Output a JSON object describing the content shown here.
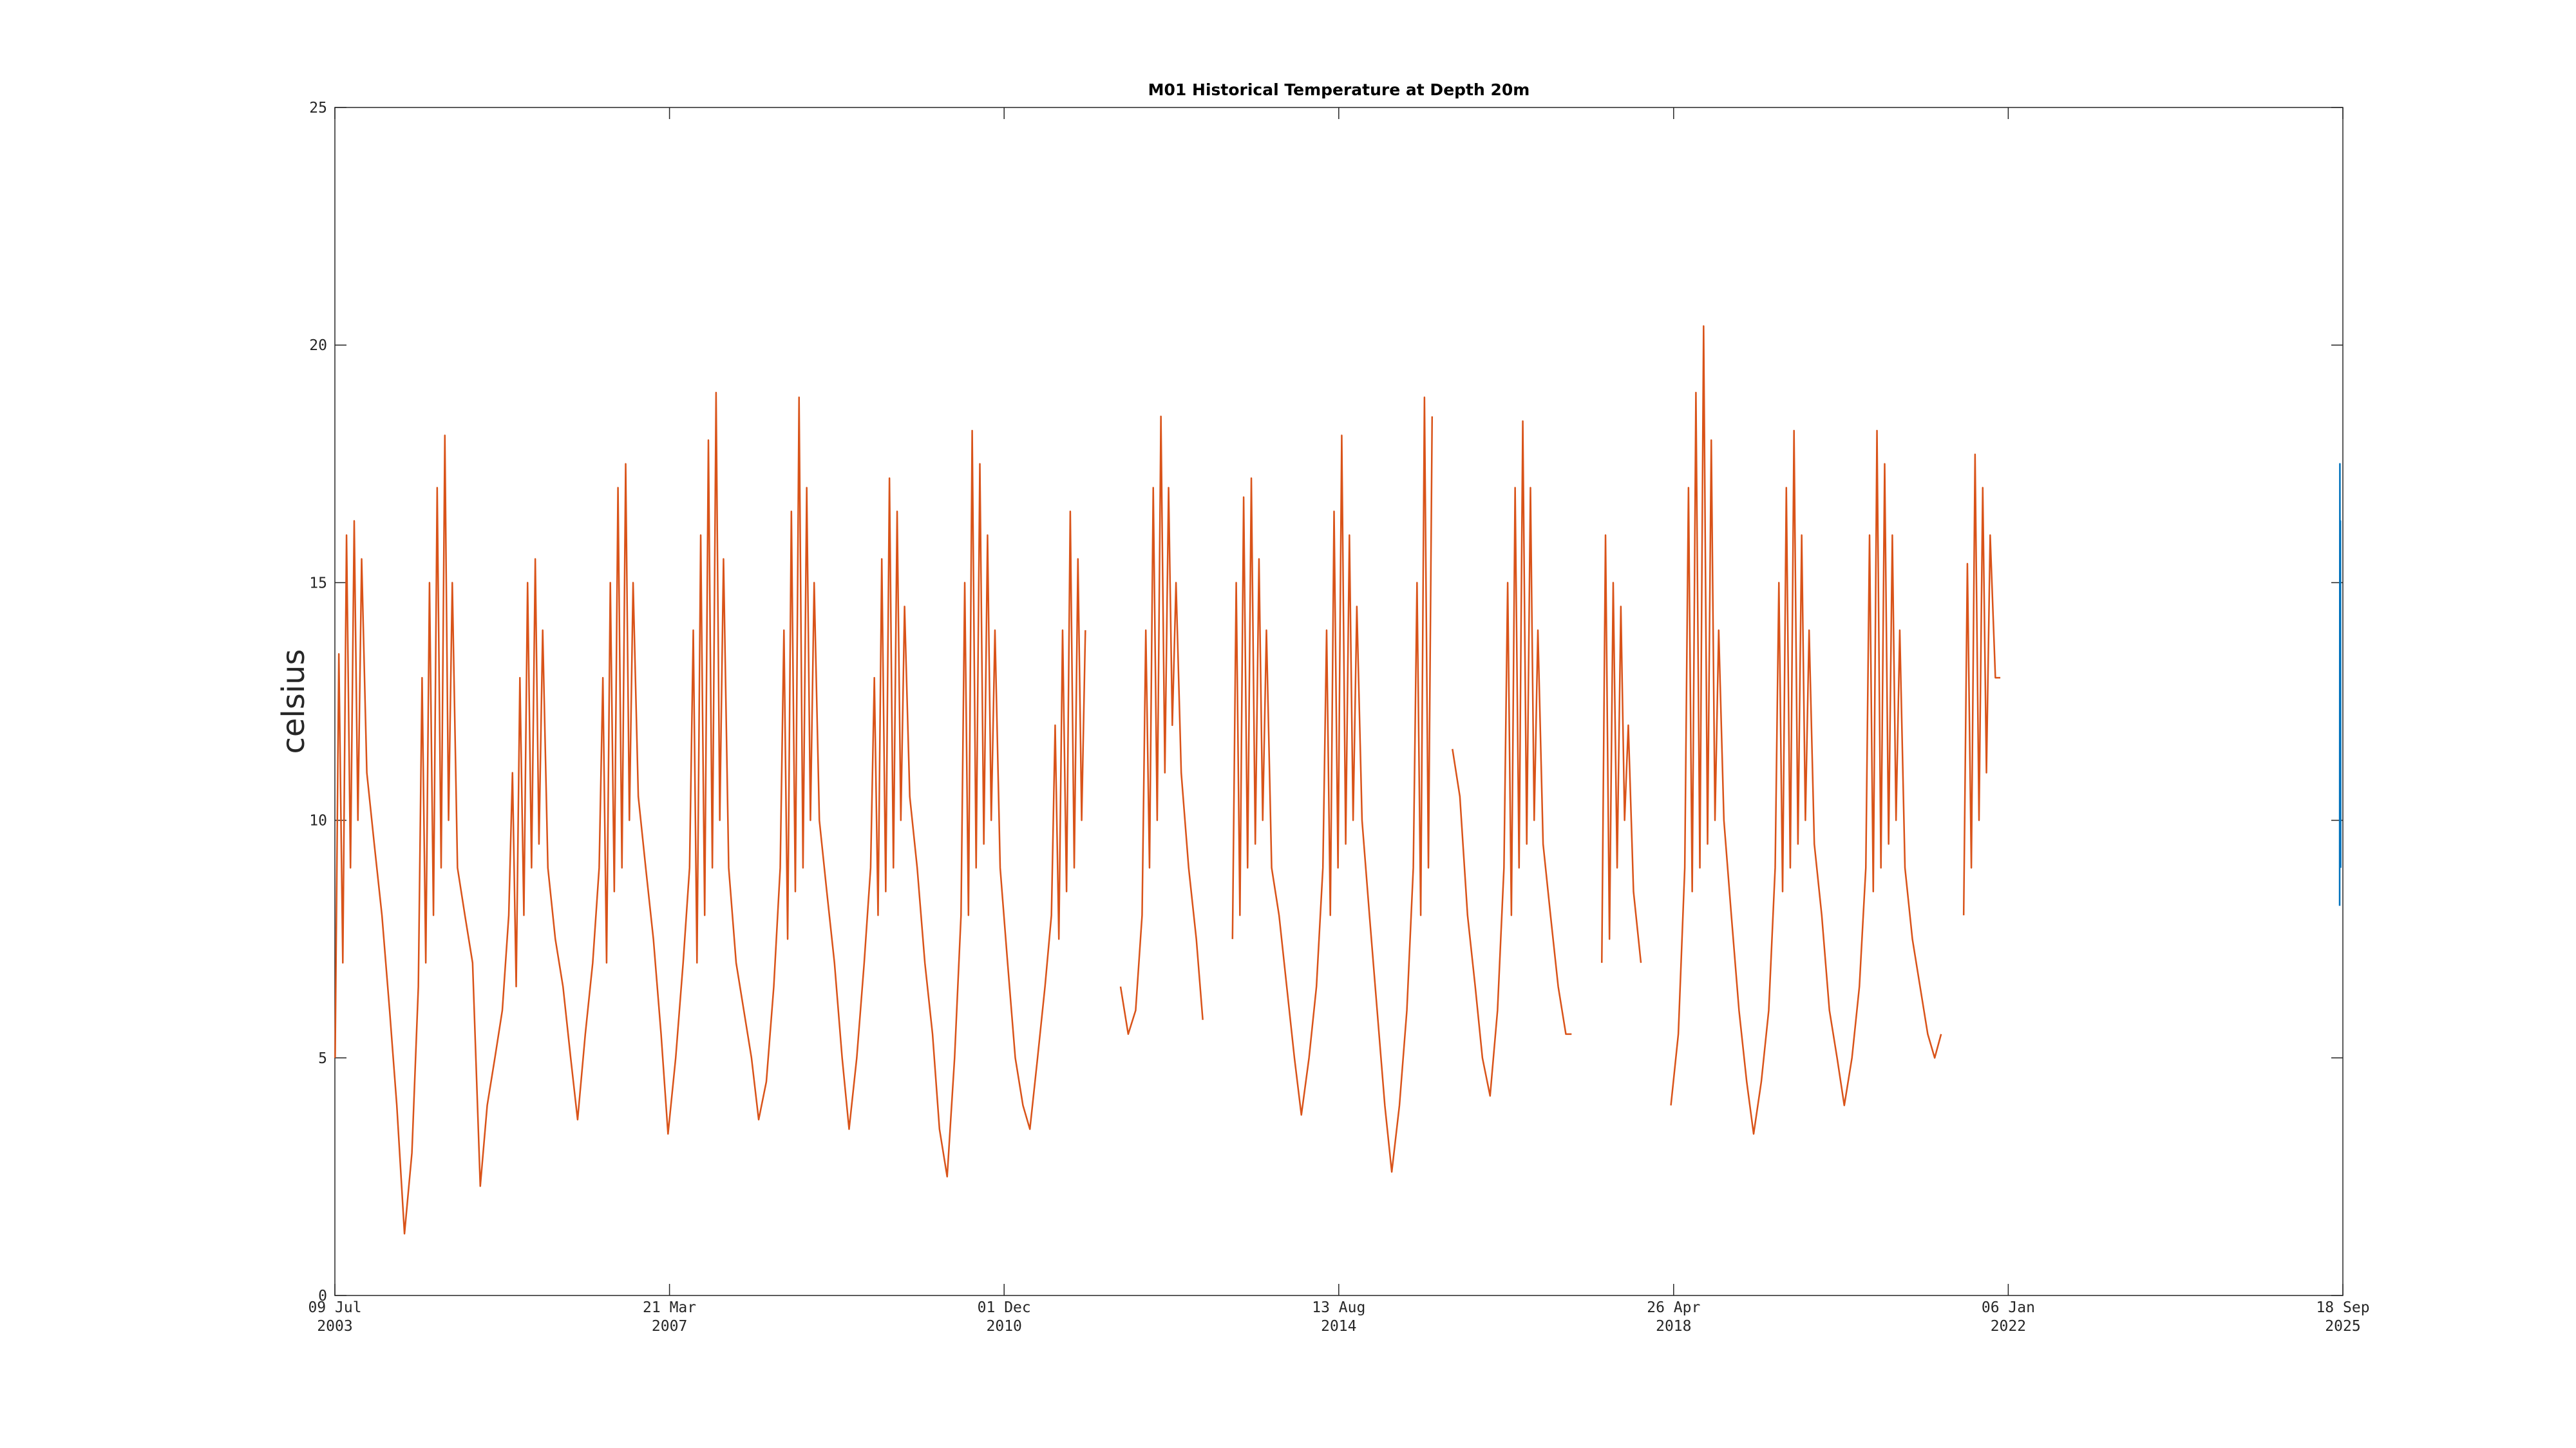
{
  "chart_data": {
    "type": "line",
    "title": "M01 Historical Temperature at Depth 20m",
    "ylabel": "celsius",
    "xlim": [
      "2003-07-09",
      "2025-09-18"
    ],
    "xticks": [
      {
        "value": "2003-07-09",
        "label": "09 Jul 2003"
      },
      {
        "value": "2007-03-21",
        "label": "21 Mar 2007"
      },
      {
        "value": "2010-12-01",
        "label": "01 Dec 2010"
      },
      {
        "value": "2014-08-13",
        "label": "13 Aug 2014"
      },
      {
        "value": "2018-04-26",
        "label": "26 Apr 2018"
      },
      {
        "value": "2022-01-06",
        "label": "06 Jan 2022"
      },
      {
        "value": "2025-09-18",
        "label": "18 Sep 2025"
      }
    ],
    "ylim": [
      0,
      25
    ],
    "yticks": [
      0,
      5,
      10,
      15,
      20,
      25
    ],
    "grid": false,
    "series": [
      {
        "color": "#D95319",
        "x": [
          "2003-07-10",
          "2003-07-25",
          "2003-08-10",
          "2003-08-25",
          "2003-09-10",
          "2003-09-25",
          "2003-10-10",
          "2003-10-25",
          "2003-11-15",
          "2003-12-15",
          "2004-01-15",
          "2004-02-15",
          "2004-03-15",
          "2004-04-15",
          "2004-05-15",
          "2004-06-10",
          "2004-06-25",
          "2004-07-10",
          "2004-07-25",
          "2004-08-10",
          "2004-08-25",
          "2004-09-10",
          "2004-09-25",
          "2004-10-10",
          "2004-10-25",
          "2004-11-15",
          "2004-12-15",
          "2005-01-15",
          "2005-02-15",
          "2005-03-15",
          "2005-04-15",
          "2005-05-15",
          "2005-06-10",
          "2005-06-25",
          "2005-07-10",
          "2005-07-25",
          "2005-08-10",
          "2005-08-25",
          "2005-09-10",
          "2005-09-25",
          "2005-10-10",
          "2005-10-25",
          "2005-11-15",
          "2005-12-15",
          "2006-01-15",
          "2006-02-15",
          "2006-03-15",
          "2006-04-15",
          "2006-05-15",
          "2006-06-10",
          "2006-06-25",
          "2006-07-10",
          "2006-07-25",
          "2006-08-10",
          "2006-08-25",
          "2006-09-10",
          "2006-09-25",
          "2006-10-10",
          "2006-10-25",
          "2006-11-15",
          "2006-12-15",
          "2007-01-15",
          "2007-02-15",
          "2007-03-15",
          "2007-04-15",
          "2007-05-15",
          "2007-06-10",
          "2007-06-25",
          "2007-07-10",
          "2007-07-25",
          "2007-08-10",
          "2007-08-25",
          "2007-09-10",
          "2007-09-25",
          "2007-10-10",
          "2007-10-25",
          "2007-11-15",
          "2007-12-15",
          "2008-01-15",
          "2008-02-15",
          "2008-03-15",
          "2008-04-15",
          "2008-05-15",
          "2008-06-10",
          "2008-06-25",
          "2008-07-10",
          "2008-07-25",
          "2008-08-10",
          "2008-08-25",
          "2008-09-10",
          "2008-09-25",
          "2008-10-10",
          "2008-10-25",
          "2008-11-15",
          "2008-12-15",
          "2009-01-15",
          "2009-02-15",
          "2009-03-15",
          "2009-04-15",
          "2009-05-15",
          "2009-06-10",
          "2009-06-25",
          "2009-07-10",
          "2009-07-25",
          "2009-08-10",
          "2009-08-25",
          "2009-09-10",
          "2009-09-25",
          "2009-10-10",
          "2009-10-25",
          "2009-11-15",
          "2009-12-15",
          "2010-01-15",
          "2010-02-15",
          "2010-03-15",
          "2010-04-15",
          "2010-05-15",
          "2010-06-10",
          "2010-06-25",
          "2010-07-10",
          "2010-07-25",
          "2010-08-10",
          "2010-08-25",
          "2010-09-10",
          "2010-09-25",
          "2010-10-10",
          "2010-10-25",
          "2010-11-15",
          "2010-12-15",
          "2011-01-15",
          "2011-02-15",
          "2011-03-15",
          "2011-04-15",
          "2011-05-15",
          "2011-06-10",
          "2011-06-25",
          "2011-07-10",
          "2011-07-25",
          "2011-08-10",
          "2011-08-25",
          "2011-09-10",
          "2011-09-25",
          "2011-10-10",
          "2011-10-25",
          "2011-11-15",
          "2012-03-15",
          "2012-04-15",
          "2012-05-15",
          "2012-06-10",
          "2012-06-25",
          "2012-07-10",
          "2012-07-25",
          "2012-08-10",
          "2012-08-25",
          "2012-09-10",
          "2012-09-25",
          "2012-10-10",
          "2012-10-25",
          "2012-11-15",
          "2012-12-15",
          "2013-01-15",
          "2013-02-10",
          "2013-03-15",
          "2013-06-10",
          "2013-06-25",
          "2013-07-10",
          "2013-07-25",
          "2013-08-10",
          "2013-08-25",
          "2013-09-10",
          "2013-09-25",
          "2013-10-10",
          "2013-10-25",
          "2013-11-15",
          "2013-12-15",
          "2014-01-15",
          "2014-02-15",
          "2014-03-15",
          "2014-04-15",
          "2014-05-15",
          "2014-06-10",
          "2014-06-25",
          "2014-07-10",
          "2014-07-25",
          "2014-08-10",
          "2014-08-25",
          "2014-09-10",
          "2014-09-25",
          "2014-10-10",
          "2014-10-25",
          "2014-11-15",
          "2014-12-15",
          "2015-01-15",
          "2015-02-15",
          "2015-03-15",
          "2015-04-15",
          "2015-05-15",
          "2015-06-10",
          "2015-06-25",
          "2015-07-10",
          "2015-07-25",
          "2015-08-10",
          "2015-08-25",
          "2015-09-10",
          "2015-11-15",
          "2015-12-15",
          "2016-01-15",
          "2016-02-15",
          "2016-03-15",
          "2016-04-15",
          "2016-05-15",
          "2016-06-10",
          "2016-06-25",
          "2016-07-10",
          "2016-07-25",
          "2016-08-10",
          "2016-08-25",
          "2016-09-10",
          "2016-09-25",
          "2016-10-10",
          "2016-10-25",
          "2016-11-15",
          "2016-12-15",
          "2017-01-15",
          "2017-02-15",
          "2017-03-10",
          "2017-04-15",
          "2017-07-10",
          "2017-07-25",
          "2017-08-10",
          "2017-08-25",
          "2017-09-10",
          "2017-09-25",
          "2017-10-10",
          "2017-10-25",
          "2017-11-15",
          "2017-12-15",
          "2018-01-15",
          "2018-04-15",
          "2018-05-15",
          "2018-06-10",
          "2018-06-25",
          "2018-07-10",
          "2018-07-25",
          "2018-08-10",
          "2018-08-25",
          "2018-09-10",
          "2018-09-25",
          "2018-10-10",
          "2018-10-25",
          "2018-11-15",
          "2018-12-15",
          "2019-01-15",
          "2019-02-15",
          "2019-03-15",
          "2019-04-15",
          "2019-05-15",
          "2019-06-10",
          "2019-06-25",
          "2019-07-10",
          "2019-07-25",
          "2019-08-10",
          "2019-08-25",
          "2019-09-10",
          "2019-09-25",
          "2019-10-10",
          "2019-10-25",
          "2019-11-15",
          "2019-12-15",
          "2020-01-15",
          "2020-02-15",
          "2020-03-15",
          "2020-04-15",
          "2020-05-15",
          "2020-06-10",
          "2020-06-25",
          "2020-07-10",
          "2020-07-25",
          "2020-08-10",
          "2020-08-25",
          "2020-09-10",
          "2020-09-25",
          "2020-10-10",
          "2020-10-25",
          "2020-11-15",
          "2020-12-15",
          "2021-01-15",
          "2021-02-15",
          "2021-03-15",
          "2021-04-10",
          "2021-05-15",
          "2021-07-10",
          "2021-07-25",
          "2021-08-10",
          "2021-08-25",
          "2021-09-10",
          "2021-09-25",
          "2021-10-10",
          "2021-10-25",
          "2021-11-15",
          "2021-12-05"
        ],
        "values": [
          5,
          13.5,
          7,
          16,
          9,
          16.3,
          10,
          15.5,
          11,
          9.5,
          8,
          6,
          4,
          1.3,
          3,
          6.5,
          13,
          7,
          15,
          8,
          17,
          9,
          18.1,
          10,
          15,
          9,
          8,
          7,
          2.3,
          4,
          5,
          6,
          8,
          11,
          6.5,
          13,
          8,
          15,
          9,
          15.5,
          9.5,
          14,
          9,
          7.5,
          6.5,
          5,
          3.7,
          5.5,
          7,
          9,
          13,
          7,
          15,
          8.5,
          17,
          9,
          17.5,
          10,
          15,
          10.5,
          9,
          7.5,
          5.5,
          3.4,
          5,
          7,
          9,
          14,
          7,
          16,
          8,
          18,
          9,
          19,
          10,
          15.5,
          9,
          7,
          6,
          5,
          3.7,
          4.5,
          6.5,
          9,
          14,
          7.5,
          16.5,
          8.5,
          18.9,
          9,
          17,
          10,
          15,
          10,
          8.5,
          7,
          5,
          3.5,
          5,
          7,
          9,
          13,
          8,
          15.5,
          8.5,
          17.2,
          9,
          16.5,
          10,
          14.5,
          10.5,
          9,
          7,
          5.5,
          3.5,
          2.5,
          5,
          8,
          15,
          8,
          18.2,
          9,
          17.5,
          9.5,
          16,
          10,
          14,
          9,
          7,
          5,
          4,
          3.5,
          5,
          6.5,
          8,
          12,
          7.5,
          14,
          8.5,
          16.5,
          9,
          15.5,
          10,
          14,
          null,
          6.5,
          5.5,
          6,
          8,
          14,
          9,
          17,
          10,
          18.5,
          11,
          17,
          12,
          15,
          11,
          9,
          7.5,
          5.8,
          null,
          7.5,
          15,
          8,
          16.8,
          9,
          17.2,
          9.5,
          15.5,
          10,
          14,
          9,
          8,
          6.5,
          5,
          3.8,
          5,
          6.5,
          9,
          14,
          8,
          16.5,
          9,
          18.1,
          9.5,
          16,
          10,
          14.5,
          10,
          8,
          6,
          4,
          2.6,
          4,
          6,
          9,
          15,
          8,
          18.9,
          9,
          18.5,
          null,
          11.5,
          10.5,
          8,
          6.5,
          5,
          4.2,
          6,
          9,
          15,
          8,
          17,
          9,
          18.4,
          9.5,
          17,
          10,
          14,
          9.5,
          8,
          6.5,
          5.5,
          5.5,
          null,
          7,
          16,
          7.5,
          15,
          9,
          14.5,
          10,
          12,
          8.5,
          7,
          null,
          4,
          5.5,
          9,
          17,
          8.5,
          19,
          9,
          20.4,
          9.5,
          18,
          10,
          14,
          10,
          8,
          6,
          4.5,
          3.4,
          4.5,
          6,
          9,
          15,
          8.5,
          17,
          9,
          18.2,
          9.5,
          16,
          10,
          14,
          9.5,
          8,
          6,
          5,
          4,
          5,
          6.5,
          9,
          16,
          8.5,
          18.2,
          9,
          17.5,
          9.5,
          16,
          10,
          14,
          9,
          7.5,
          6.5,
          5.5,
          5,
          5.5,
          null,
          8,
          15.4,
          9,
          17.7,
          10,
          17,
          11,
          16,
          13,
          13
        ]
      },
      {
        "color": "#0072BD",
        "x": [
          "2025-09-05",
          "2025-09-06",
          "2025-09-07",
          "2025-09-08",
          "2025-09-09"
        ],
        "values": [
          8.2,
          17.5,
          10,
          16.3,
          9
        ]
      }
    ]
  }
}
